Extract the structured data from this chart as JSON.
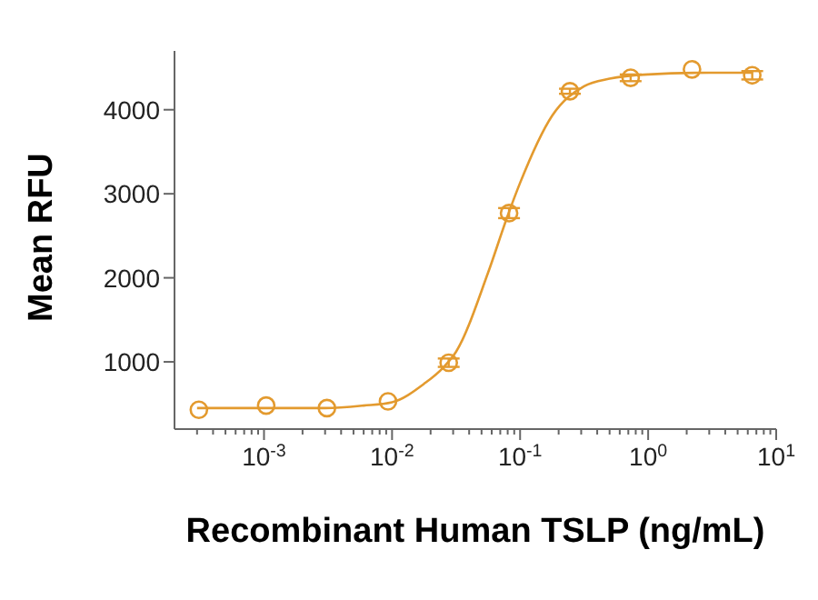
{
  "chart_data": {
    "type": "line",
    "xlabel": "Recombinant Human TSLP (ng/mL)",
    "ylabel": "Mean RFU",
    "log": "x",
    "grid": false,
    "legend": false,
    "xlim": [
      0.0002,
      10
    ],
    "ylim": [
      200,
      4700
    ],
    "yticks": [
      1000,
      2000,
      3000,
      4000
    ],
    "xticks": [
      {
        "value": 0.001,
        "label": "10$^{-3}$"
      },
      {
        "value": 0.01,
        "label": "10$^{-2}$"
      },
      {
        "value": 0.1,
        "label": "10$^{-1}$"
      },
      {
        "value": 1,
        "label": "10$^{0}$"
      },
      {
        "value": 10,
        "label": "10$^{1}$"
      },
      {
        "value": 0.0003,
        "label": null
      },
      {
        "value": 0.0004,
        "label": null
      },
      {
        "value": 0.0005,
        "label": null
      },
      {
        "value": 0.0006,
        "label": null
      },
      {
        "value": 0.0007,
        "label": null
      },
      {
        "value": 0.0008,
        "label": null
      },
      {
        "value": 0.0009,
        "label": null
      },
      {
        "value": 0.002,
        "label": null
      },
      {
        "value": 0.003,
        "label": null
      },
      {
        "value": 0.004,
        "label": null
      },
      {
        "value": 0.005,
        "label": null
      },
      {
        "value": 0.006,
        "label": null
      },
      {
        "value": 0.007,
        "label": null
      },
      {
        "value": 0.008,
        "label": null
      },
      {
        "value": 0.009,
        "label": null
      },
      {
        "value": 0.02,
        "label": null
      },
      {
        "value": 0.03,
        "label": null
      },
      {
        "value": 0.04,
        "label": null
      },
      {
        "value": 0.05,
        "label": null
      },
      {
        "value": 0.06,
        "label": null
      },
      {
        "value": 0.07,
        "label": null
      },
      {
        "value": 0.08,
        "label": null
      },
      {
        "value": 0.09,
        "label": null
      },
      {
        "value": 0.2,
        "label": null
      },
      {
        "value": 0.3,
        "label": null
      },
      {
        "value": 0.4,
        "label": null
      },
      {
        "value": 0.5,
        "label": null
      },
      {
        "value": 0.6,
        "label": null
      },
      {
        "value": 0.7,
        "label": null
      },
      {
        "value": 0.8,
        "label": null
      },
      {
        "value": 0.9,
        "label": null
      },
      {
        "value": 2,
        "label": null
      },
      {
        "value": 3,
        "label": null
      },
      {
        "value": 4,
        "label": null
      },
      {
        "value": 5,
        "label": null
      },
      {
        "value": 6,
        "label": null
      },
      {
        "value": 7,
        "label": null
      },
      {
        "value": 8,
        "label": null
      },
      {
        "value": 9,
        "label": null
      }
    ],
    "series": [
      {
        "color": "#e39a2e",
        "marker": "none",
        "x": [
          0.0003,
          0.001,
          0.003,
          0.006,
          0.01,
          0.0178,
          0.025,
          0.0316,
          0.0562,
          0.08,
          0.1,
          0.178,
          0.316,
          0.5,
          1,
          3,
          6.5
        ],
        "values": [
          450,
          450,
          450,
          480,
          520,
          740,
          930,
          1120,
          2060,
          2740,
          3130,
          3930,
          4280,
          4370,
          4420,
          4440,
          4440
        ]
      },
      {
        "type": "scatter",
        "color": "#e39a2e",
        "marker": "circle",
        "x": [
          0.00031,
          0.00104,
          0.0031,
          0.0093,
          0.0277,
          0.082,
          0.245,
          0.73,
          2.2,
          6.5
        ],
        "values": [
          430,
          480,
          450,
          530,
          990,
          2770,
          4220,
          4380,
          4480,
          4410
        ],
        "errors": [
          null,
          null,
          null,
          null,
          50,
          60,
          30,
          40,
          null,
          50
        ]
      }
    ]
  }
}
